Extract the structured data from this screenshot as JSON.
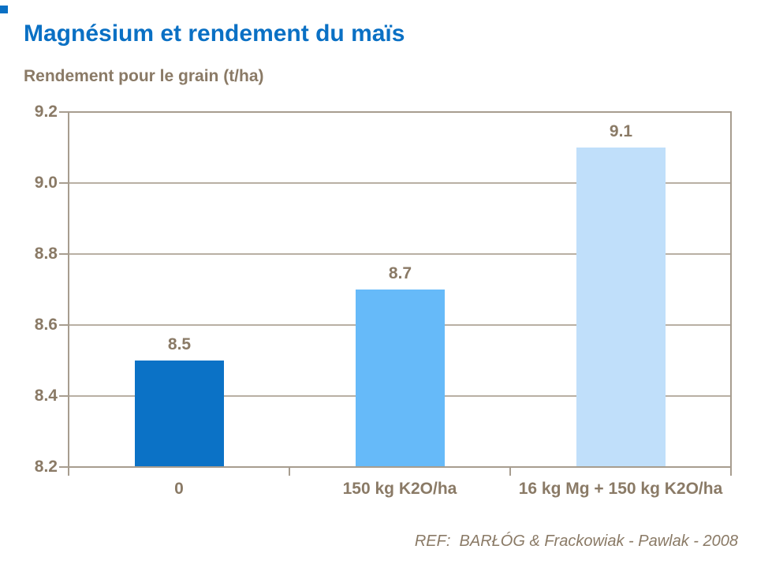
{
  "page": {
    "title": "Magnésium et rendement du maïs",
    "subtitle": "Rendement pour le grain (t/ha)",
    "reference": "REF:  BARŁÓG & Frackowiak - Pawlak - 2008"
  },
  "colors": {
    "title_blue": "#0a70c4",
    "text_brown": "#8a7a66",
    "axis_border": "#a79d8f",
    "gridline": "#b9b0a4",
    "accent_square": "#0a70c4"
  },
  "chart_data": {
    "type": "bar",
    "categories": [
      "0",
      "150 kg K2O/ha",
      "16 kg Mg + 150 kg K2O/ha"
    ],
    "values": [
      8.5,
      8.7,
      9.1
    ],
    "data_labels": [
      "8.5",
      "8.7",
      "9.1"
    ],
    "bar_colors": [
      "#0b72c6",
      "#66baf9",
      "#c0dffa"
    ],
    "title": "Magnésium et rendement du maïs",
    "ylabel": "Rendement pour le grain (t/ha)",
    "xlabel": "",
    "ylim": [
      8.2,
      9.2
    ],
    "yticks": [
      "8.2",
      "8.4",
      "8.6",
      "8.8",
      "9.0",
      "9.2"
    ],
    "grid": true,
    "legend": false
  }
}
